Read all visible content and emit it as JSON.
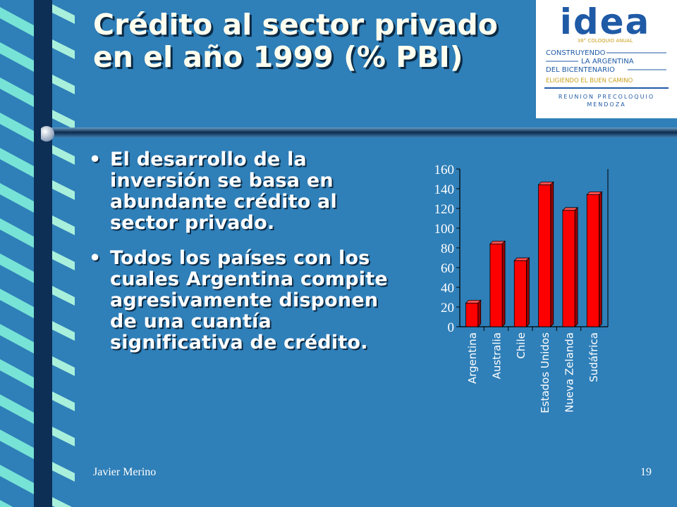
{
  "slide": {
    "title": "Crédito al sector privado en el año 1999 (% PBI)",
    "bullets": [
      "El desarrollo de la inversión se basa en abundante crédito al sector privado.",
      "Todos los países con los cuales Argentina compite agresivamente disponen de una cuantía significativa de crédito."
    ],
    "footer_author": "Javier Merino",
    "page_number": "19"
  },
  "logo": {
    "brand": "idea",
    "small_line": "38° COLOQUIO ANUAL",
    "line1": "CONSTRUYENDO",
    "line2": "LA ARGENTINA",
    "line3": "DEL BICENTENARIO",
    "line4": "ELIGIENDO EL BUEN CAMINO",
    "line5": "REUNION PRECOLOQUIO",
    "line6": "MENDOZA"
  },
  "colors": {
    "background": "#2f7fb8",
    "bar_fill": "#ff0000",
    "logo_blue": "#1f5aa6"
  },
  "chart_data": {
    "type": "bar",
    "title": "",
    "xlabel": "",
    "ylabel": "",
    "categories": [
      "Argentina",
      "Australia",
      "Chile",
      "Estados Unidos",
      "Nueva Zelanda",
      "Sudáfrica"
    ],
    "values": [
      24,
      84,
      67,
      144,
      118,
      134
    ],
    "ylim": [
      0,
      160
    ],
    "yticks": [
      0,
      20,
      40,
      60,
      80,
      100,
      120,
      140,
      160
    ],
    "grid": false,
    "style": "3d"
  }
}
